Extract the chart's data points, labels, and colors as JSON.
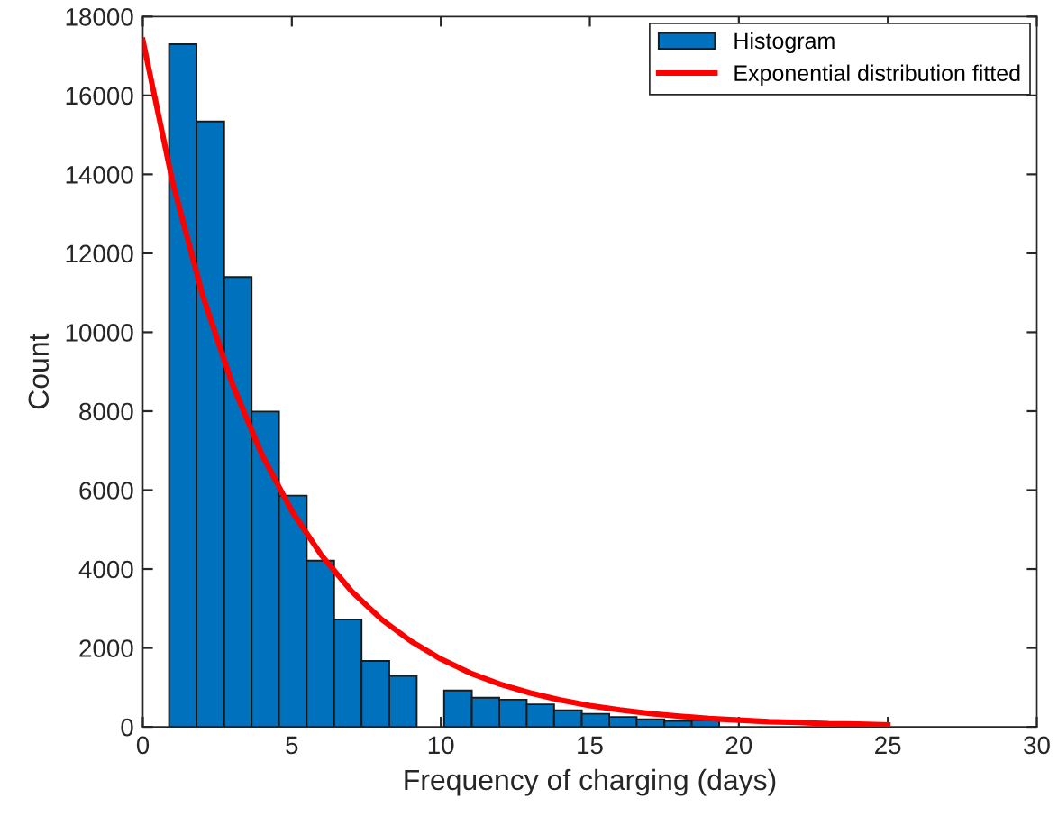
{
  "chart_data": {
    "type": "histogram",
    "xlabel": "Frequency of charging (days)",
    "ylabel": "Count",
    "bins": [
      0.88,
      1.8,
      2.73,
      3.65,
      4.57,
      5.5,
      6.42,
      7.34,
      8.27,
      9.19,
      10.11,
      11.04,
      11.96,
      12.88,
      13.8,
      14.73,
      15.65,
      16.57,
      17.5,
      18.42,
      19.34
    ],
    "series": [
      {
        "name": "Histogram",
        "color": "#0072bd",
        "values": [
          17300,
          15340,
          11400,
          7990,
          5860,
          4210,
          2720,
          1670,
          1290,
          0,
          920,
          740,
          690,
          570,
          420,
          330,
          250,
          190,
          150,
          170
        ]
      },
      {
        "name": "Exponential distribution fitted",
        "type": "line",
        "color": "#ff0000",
        "x": [
          0,
          1,
          2,
          3,
          4,
          5,
          6,
          7,
          8,
          9,
          10,
          11,
          12,
          13,
          14,
          15,
          16,
          17,
          18,
          19,
          20,
          21,
          22,
          23,
          24,
          25
        ],
        "values": [
          17400,
          13800,
          10950,
          8690,
          6890,
          5470,
          4340,
          3440,
          2730,
          2170,
          1720,
          1360,
          1080,
          860,
          680,
          540,
          430,
          340,
          270,
          210,
          170,
          130,
          110,
          80,
          70,
          50
        ]
      }
    ],
    "xlim": [
      0,
      30
    ],
    "xticks": [
      0,
      5,
      10,
      15,
      20,
      25,
      30
    ],
    "ylim": [
      0,
      18000
    ],
    "yticks": [
      0,
      2000,
      4000,
      6000,
      8000,
      10000,
      12000,
      14000,
      16000,
      18000
    ],
    "legend": "top right",
    "grid": false
  }
}
